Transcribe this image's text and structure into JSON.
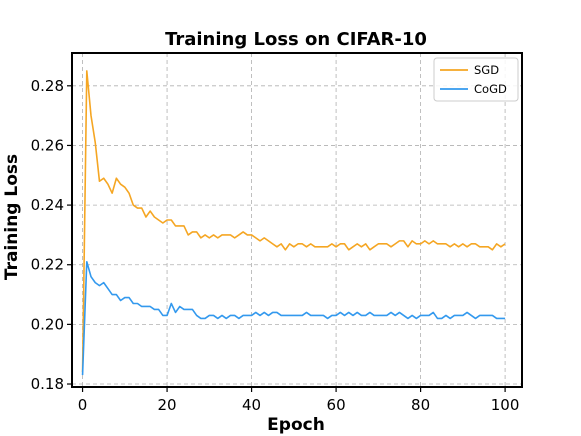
{
  "chart_data": {
    "type": "line",
    "title": "Training Loss on CIFAR-10",
    "xlabel": "Epoch",
    "ylabel": "Training Loss",
    "xlim": [
      -2.5,
      104
    ],
    "ylim": [
      0.179,
      0.291
    ],
    "xticks": [
      0,
      20,
      40,
      60,
      80,
      100
    ],
    "yticks": [
      0.18,
      0.2,
      0.22,
      0.24,
      0.26,
      0.28
    ],
    "xtick_labels": [
      "0",
      "20",
      "40",
      "60",
      "80",
      "100"
    ],
    "ytick_labels": [
      "0.18",
      "0.20",
      "0.22",
      "0.24",
      "0.26",
      "0.28"
    ],
    "grid": true,
    "legend_position": "top-right",
    "x": [
      0,
      1,
      2,
      3,
      4,
      5,
      6,
      7,
      8,
      9,
      10,
      11,
      12,
      13,
      14,
      15,
      16,
      17,
      18,
      19,
      20,
      21,
      22,
      23,
      24,
      25,
      26,
      27,
      28,
      29,
      30,
      31,
      32,
      33,
      34,
      35,
      36,
      37,
      38,
      39,
      40,
      41,
      42,
      43,
      44,
      45,
      46,
      47,
      48,
      49,
      50,
      51,
      52,
      53,
      54,
      55,
      56,
      57,
      58,
      59,
      60,
      61,
      62,
      63,
      64,
      65,
      66,
      67,
      68,
      69,
      70,
      71,
      72,
      73,
      74,
      75,
      76,
      77,
      78,
      79,
      80,
      81,
      82,
      83,
      84,
      85,
      86,
      87,
      88,
      89,
      90,
      91,
      92,
      93,
      94,
      95,
      96,
      97,
      98,
      99,
      100
    ],
    "series": [
      {
        "name": "SGD",
        "color": "#f5a623",
        "values": [
          0.184,
          0.285,
          0.27,
          0.261,
          0.248,
          0.249,
          0.247,
          0.244,
          0.249,
          0.247,
          0.246,
          0.244,
          0.24,
          0.239,
          0.239,
          0.236,
          0.238,
          0.236,
          0.235,
          0.234,
          0.235,
          0.235,
          0.233,
          0.233,
          0.233,
          0.23,
          0.231,
          0.231,
          0.229,
          0.23,
          0.229,
          0.23,
          0.229,
          0.23,
          0.23,
          0.23,
          0.229,
          0.23,
          0.231,
          0.23,
          0.23,
          0.229,
          0.228,
          0.229,
          0.228,
          0.227,
          0.226,
          0.227,
          0.225,
          0.227,
          0.226,
          0.227,
          0.227,
          0.226,
          0.227,
          0.226,
          0.226,
          0.226,
          0.226,
          0.227,
          0.226,
          0.227,
          0.227,
          0.225,
          0.226,
          0.227,
          0.226,
          0.227,
          0.225,
          0.226,
          0.227,
          0.227,
          0.227,
          0.226,
          0.227,
          0.228,
          0.228,
          0.226,
          0.228,
          0.227,
          0.227,
          0.228,
          0.227,
          0.228,
          0.227,
          0.227,
          0.227,
          0.226,
          0.227,
          0.226,
          0.227,
          0.226,
          0.227,
          0.227,
          0.226,
          0.226,
          0.226,
          0.225,
          0.227,
          0.226,
          0.227
        ]
      },
      {
        "name": "CoGD",
        "color": "#3399ee",
        "values": [
          0.183,
          0.221,
          0.216,
          0.214,
          0.213,
          0.214,
          0.212,
          0.21,
          0.21,
          0.208,
          0.209,
          0.209,
          0.207,
          0.207,
          0.206,
          0.206,
          0.206,
          0.205,
          0.205,
          0.203,
          0.203,
          0.207,
          0.204,
          0.206,
          0.205,
          0.205,
          0.205,
          0.203,
          0.202,
          0.202,
          0.203,
          0.203,
          0.202,
          0.203,
          0.202,
          0.203,
          0.203,
          0.202,
          0.203,
          0.203,
          0.203,
          0.204,
          0.203,
          0.204,
          0.203,
          0.204,
          0.204,
          0.203,
          0.203,
          0.203,
          0.203,
          0.203,
          0.203,
          0.204,
          0.203,
          0.203,
          0.203,
          0.203,
          0.202,
          0.203,
          0.203,
          0.204,
          0.203,
          0.204,
          0.203,
          0.204,
          0.203,
          0.203,
          0.204,
          0.203,
          0.203,
          0.203,
          0.203,
          0.204,
          0.203,
          0.204,
          0.203,
          0.202,
          0.203,
          0.202,
          0.203,
          0.203,
          0.203,
          0.204,
          0.202,
          0.202,
          0.203,
          0.202,
          0.203,
          0.203,
          0.203,
          0.204,
          0.203,
          0.202,
          0.203,
          0.203,
          0.203,
          0.203,
          0.202,
          0.202,
          0.202
        ]
      }
    ]
  }
}
